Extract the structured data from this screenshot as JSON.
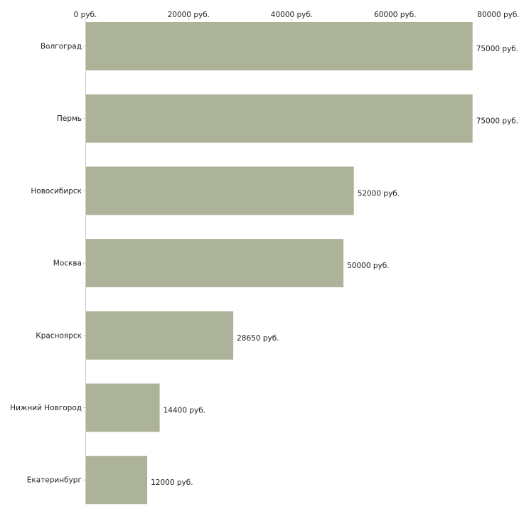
{
  "chart_data": {
    "type": "bar",
    "orientation": "horizontal",
    "title": "",
    "xlabel": "",
    "ylabel": "",
    "categories": [
      "Волгоград",
      "Пермь",
      "Новосибирск",
      "Москва",
      "Красноярск",
      "Нижний Новгород",
      "Екатеринбург"
    ],
    "values": [
      75000,
      75000,
      52000,
      50000,
      28650,
      14400,
      12000
    ],
    "value_labels": [
      "75000 руб.",
      "75000 руб.",
      "52000 руб.",
      "50000 руб.",
      "28650 руб.",
      "14400 руб.",
      "12000 руб."
    ],
    "xlim": [
      0,
      80000
    ],
    "ticks": [
      0,
      20000,
      40000,
      60000,
      80000
    ],
    "tick_labels": [
      "0 руб.",
      "20000 руб.",
      "40000 руб.",
      "60000 руб.",
      "80000 руб."
    ],
    "axis_position": "top",
    "grid": false,
    "bar_color": "#adb398",
    "axis_color": "#cccccc"
  }
}
